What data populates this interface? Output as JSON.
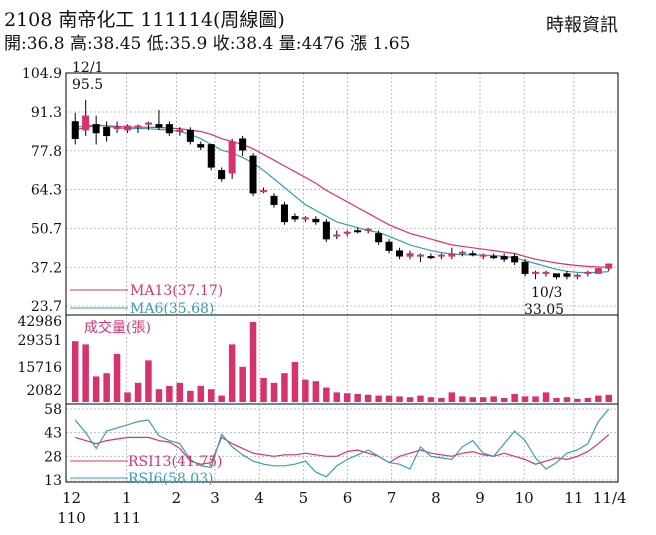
{
  "header": {
    "title": "2108  南帝化工 111114(周線圖)",
    "source": "時報資訊",
    "summary": "開:36.8 高:38.45 低:35.9 收:38.4 量:4476 漲 1.65"
  },
  "chart_data": [
    {
      "type": "candlestick",
      "panel": "price",
      "y_ticks": [
        "104.9",
        "91.3",
        "77.8",
        "64.3",
        "50.7",
        "37.2",
        "23.7"
      ],
      "ylim": [
        23.7,
        104.9
      ],
      "annotations": [
        {
          "label": "12/1",
          "value": "95.5"
        },
        {
          "label": "10/3",
          "value": "33.05"
        }
      ],
      "legend": [
        {
          "name": "MA13(37.17)",
          "color": "#d6336e"
        },
        {
          "name": "MA6(35.68)",
          "color": "#3a9bb8"
        }
      ],
      "candles": [
        {
          "o": 88,
          "h": 91,
          "l": 80,
          "c": 82
        },
        {
          "o": 85,
          "h": 95.5,
          "l": 83,
          "c": 90
        },
        {
          "o": 87,
          "h": 90,
          "l": 80,
          "c": 84
        },
        {
          "o": 86,
          "h": 88,
          "l": 81,
          "c": 83
        },
        {
          "o": 86,
          "h": 88,
          "l": 84,
          "c": 86
        },
        {
          "o": 85,
          "h": 87,
          "l": 84,
          "c": 86.5
        },
        {
          "o": 86,
          "h": 87,
          "l": 84,
          "c": 86.5
        },
        {
          "o": 87,
          "h": 88,
          "l": 85,
          "c": 87.5
        },
        {
          "o": 87,
          "h": 92,
          "l": 85,
          "c": 86
        },
        {
          "o": 87,
          "h": 88,
          "l": 83,
          "c": 84
        },
        {
          "o": 85,
          "h": 86,
          "l": 83,
          "c": 85
        },
        {
          "o": 85,
          "h": 86,
          "l": 80,
          "c": 81
        },
        {
          "o": 80,
          "h": 81,
          "l": 78,
          "c": 79
        },
        {
          "o": 80,
          "h": 80,
          "l": 71,
          "c": 72
        },
        {
          "o": 71,
          "h": 72,
          "l": 67,
          "c": 68
        },
        {
          "o": 70,
          "h": 82,
          "l": 68,
          "c": 81
        },
        {
          "o": 82,
          "h": 83,
          "l": 76,
          "c": 78
        },
        {
          "o": 76,
          "h": 77,
          "l": 62,
          "c": 63
        },
        {
          "o": 64,
          "h": 65,
          "l": 63,
          "c": 64
        },
        {
          "o": 62,
          "h": 63,
          "l": 58,
          "c": 59
        },
        {
          "o": 59,
          "h": 60,
          "l": 52,
          "c": 53
        },
        {
          "o": 55,
          "h": 56,
          "l": 53,
          "c": 54
        },
        {
          "o": 54,
          "h": 55,
          "l": 53,
          "c": 54.5
        },
        {
          "o": 54,
          "h": 55,
          "l": 52,
          "c": 53
        },
        {
          "o": 53,
          "h": 54,
          "l": 46,
          "c": 47
        },
        {
          "o": 48,
          "h": 50,
          "l": 47,
          "c": 48.5
        },
        {
          "o": 49,
          "h": 50,
          "l": 48,
          "c": 49.5
        },
        {
          "o": 50,
          "h": 51,
          "l": 49,
          "c": 49.8
        },
        {
          "o": 50,
          "h": 51,
          "l": 49,
          "c": 50.5
        },
        {
          "o": 49,
          "h": 50,
          "l": 45,
          "c": 46
        },
        {
          "o": 46,
          "h": 47,
          "l": 42,
          "c": 43
        },
        {
          "o": 43,
          "h": 44,
          "l": 40,
          "c": 41
        },
        {
          "o": 41,
          "h": 43,
          "l": 40,
          "c": 42
        },
        {
          "o": 41,
          "h": 42,
          "l": 39,
          "c": 41.5
        },
        {
          "o": 41,
          "h": 42,
          "l": 40,
          "c": 40.5
        },
        {
          "o": 41,
          "h": 42,
          "l": 40,
          "c": 41.5
        },
        {
          "o": 41,
          "h": 44,
          "l": 40,
          "c": 42
        },
        {
          "o": 42,
          "h": 43,
          "l": 41,
          "c": 42.5
        },
        {
          "o": 42,
          "h": 43,
          "l": 41,
          "c": 41.5
        },
        {
          "o": 41,
          "h": 42,
          "l": 40,
          "c": 41.5
        },
        {
          "o": 41,
          "h": 42,
          "l": 40,
          "c": 40.5
        },
        {
          "o": 41,
          "h": 42,
          "l": 39,
          "c": 40
        },
        {
          "o": 41,
          "h": 42,
          "l": 38,
          "c": 39
        },
        {
          "o": 39,
          "h": 40,
          "l": 34,
          "c": 35
        },
        {
          "o": 35,
          "h": 36,
          "l": 33.05,
          "c": 35.5
        },
        {
          "o": 35,
          "h": 36,
          "l": 34,
          "c": 35.5
        },
        {
          "o": 35,
          "h": 35,
          "l": 33,
          "c": 33.8
        },
        {
          "o": 35,
          "h": 36,
          "l": 33,
          "c": 34
        },
        {
          "o": 34,
          "h": 35,
          "l": 33,
          "c": 34.5
        },
        {
          "o": 35,
          "h": 36,
          "l": 34,
          "c": 35.5
        },
        {
          "o": 35,
          "h": 37,
          "l": 35,
          "c": 36.8
        },
        {
          "o": 36.8,
          "h": 38.45,
          "l": 35.9,
          "c": 38.4
        }
      ],
      "ma13": [
        85,
        86,
        86.5,
        86.5,
        86.3,
        86,
        86,
        86,
        85.9,
        85.7,
        85.5,
        85,
        84.5,
        83.5,
        82,
        81,
        80,
        78.5,
        76.5,
        74.5,
        72.5,
        70.5,
        68.5,
        66.5,
        64,
        62,
        60,
        58,
        56,
        54,
        52,
        50.5,
        49,
        48,
        47,
        46,
        45,
        44.5,
        44,
        43.5,
        43,
        42.5,
        42,
        41,
        40,
        39.3,
        38.7,
        38.2,
        37.8,
        37.5,
        37.3,
        37.17
      ],
      "ma6": [
        86,
        86.5,
        86.8,
        86.4,
        85.8,
        85.5,
        85.6,
        85.5,
        85.2,
        85,
        84.5,
        83.5,
        82,
        80,
        78,
        77,
        75.5,
        73.5,
        71,
        68,
        65,
        62,
        59,
        57,
        55,
        53,
        52,
        51,
        50,
        49.3,
        48,
        46.5,
        45,
        44,
        43,
        42.3,
        41.8,
        41.6,
        41.5,
        41.4,
        41.3,
        41,
        40.5,
        39.5,
        38.5,
        37.5,
        36.5,
        35.8,
        35.4,
        35.3,
        35.4,
        35.68
      ]
    },
    {
      "type": "bar",
      "panel": "volume",
      "title": "成交量(張)",
      "y_ticks": [
        "42986",
        "29351",
        "15716",
        "2082"
      ],
      "ylim": [
        0,
        45000
      ],
      "values": [
        38000,
        36000,
        16000,
        18000,
        30000,
        6000,
        12000,
        26000,
        8000,
        10000,
        12000,
        7000,
        10000,
        8000,
        4000,
        36000,
        22000,
        50000,
        15000,
        12000,
        18000,
        25000,
        14000,
        13000,
        9000,
        6000,
        5500,
        5000,
        4500,
        4000,
        4000,
        3500,
        3000,
        4000,
        3000,
        2500,
        6000,
        3500,
        3000,
        3000,
        3500,
        2500,
        5000,
        3500,
        3500,
        6000,
        2500,
        3000,
        2000,
        2500,
        4000,
        4476
      ]
    },
    {
      "type": "line",
      "panel": "rsi",
      "y_ticks": [
        "58",
        "43",
        "28",
        "13"
      ],
      "ylim": [
        13,
        58
      ],
      "legend": [
        {
          "name": "RSI13(41.75)",
          "color": "#d6336e"
        },
        {
          "name": "RSI6(58.03)",
          "color": "#3a9bb8"
        }
      ],
      "series": [
        {
          "name": "RSI13",
          "values": [
            40,
            38,
            36,
            38,
            39,
            40,
            40,
            40,
            38,
            37,
            33,
            25,
            23,
            24,
            40,
            36,
            33,
            30,
            29,
            28,
            29,
            29,
            30,
            29,
            28,
            28,
            31,
            32,
            30,
            28,
            24,
            28,
            30,
            32,
            30,
            29,
            28,
            30,
            31,
            29,
            28,
            30,
            28,
            26,
            23,
            25,
            27,
            26,
            28,
            31,
            36,
            41.75
          ]
        },
        {
          "name": "RSI6",
          "values": [
            51,
            43,
            33,
            44,
            46,
            48,
            50,
            51,
            41,
            38,
            36,
            26,
            22,
            21,
            42,
            34,
            29,
            25,
            23,
            22,
            22,
            23,
            25,
            18,
            15,
            22,
            26,
            29,
            32,
            28,
            24,
            23,
            20,
            34,
            28,
            27,
            26,
            34,
            38,
            30,
            28,
            36,
            44,
            38,
            27,
            20,
            24,
            30,
            32,
            36,
            50,
            58.03
          ]
        }
      ]
    }
  ],
  "x_axis": {
    "labels": [
      {
        "text": "12",
        "sub": "110"
      },
      {
        "text": "1",
        "sub": "111"
      },
      {
        "text": "2"
      },
      {
        "text": "3"
      },
      {
        "text": "4"
      },
      {
        "text": "5"
      },
      {
        "text": "6"
      },
      {
        "text": "7"
      },
      {
        "text": "8"
      },
      {
        "text": "9"
      },
      {
        "text": "10"
      },
      {
        "text": "11"
      },
      {
        "text": "11/4"
      }
    ]
  },
  "colors": {
    "up": "#d6336e",
    "down": "#000000",
    "volume": "#d6336e",
    "grid": "#b0b0b0"
  }
}
